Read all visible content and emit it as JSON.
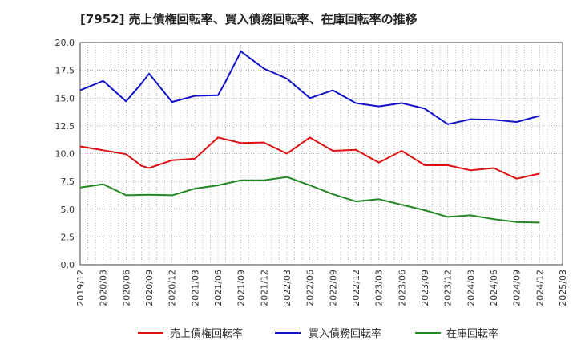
{
  "chart_data": {
    "type": "line",
    "title": "[7952]  売上債権回転率、買入債務回転率、在庫回転率の推移",
    "xlabel": "",
    "ylabel": "",
    "ylim": [
      0,
      20
    ],
    "y_ticks": [
      "0.0",
      "2.5",
      "5.0",
      "7.5",
      "10.0",
      "12.5",
      "15.0",
      "17.5",
      "20.0"
    ],
    "x_ticks": [
      "2019/12",
      "2020/03",
      "2020/06",
      "2020/09",
      "2020/12",
      "2021/03",
      "2021/06",
      "2021/09",
      "2021/12",
      "2022/03",
      "2022/06",
      "2022/09",
      "2022/12",
      "2023/03",
      "2023/06",
      "2023/09",
      "2023/12",
      "2024/03",
      "2024/06",
      "2024/09",
      "2024/12",
      "2025/03"
    ],
    "grid": true,
    "legend_position": "bottom",
    "series": [
      {
        "name": "売上債権回転率",
        "color": "#dd1111",
        "points": [
          {
            "x": "2019/12",
            "y": 10.65
          },
          {
            "x": "2020/03",
            "y": 10.3
          },
          {
            "x": "2020/06",
            "y": 9.95
          },
          {
            "x": "2020/08",
            "y": 8.9
          },
          {
            "x": "2020/09",
            "y": 8.7
          },
          {
            "x": "2020/12",
            "y": 9.4
          },
          {
            "x": "2021/03",
            "y": 9.55
          },
          {
            "x": "2021/06",
            "y": 11.45
          },
          {
            "x": "2021/09",
            "y": 10.95
          },
          {
            "x": "2021/12",
            "y": 11.0
          },
          {
            "x": "2022/03",
            "y": 10.0
          },
          {
            "x": "2022/06",
            "y": 11.45
          },
          {
            "x": "2022/09",
            "y": 10.25
          },
          {
            "x": "2022/12",
            "y": 10.35
          },
          {
            "x": "2023/03",
            "y": 9.2
          },
          {
            "x": "2023/06",
            "y": 10.25
          },
          {
            "x": "2023/09",
            "y": 8.95
          },
          {
            "x": "2023/12",
            "y": 8.95
          },
          {
            "x": "2024/03",
            "y": 8.5
          },
          {
            "x": "2024/06",
            "y": 8.7
          },
          {
            "x": "2024/09",
            "y": 7.75
          },
          {
            "x": "2024/12",
            "y": 8.2
          }
        ]
      },
      {
        "name": "買入債務回転率",
        "color": "#1111cc",
        "points": [
          {
            "x": "2019/12",
            "y": 15.7
          },
          {
            "x": "2020/03",
            "y": 16.55
          },
          {
            "x": "2020/06",
            "y": 14.7
          },
          {
            "x": "2020/08",
            "y": 16.3
          },
          {
            "x": "2020/09",
            "y": 17.2
          },
          {
            "x": "2020/12",
            "y": 14.65
          },
          {
            "x": "2021/03",
            "y": 15.2
          },
          {
            "x": "2021/06",
            "y": 15.25
          },
          {
            "x": "2021/07",
            "y": 16.5
          },
          {
            "x": "2021/09",
            "y": 19.2
          },
          {
            "x": "2021/12",
            "y": 17.65
          },
          {
            "x": "2022/03",
            "y": 16.75
          },
          {
            "x": "2022/06",
            "y": 15.0
          },
          {
            "x": "2022/09",
            "y": 15.7
          },
          {
            "x": "2022/12",
            "y": 14.55
          },
          {
            "x": "2023/03",
            "y": 14.25
          },
          {
            "x": "2023/06",
            "y": 14.55
          },
          {
            "x": "2023/09",
            "y": 14.05
          },
          {
            "x": "2023/12",
            "y": 12.65
          },
          {
            "x": "2024/03",
            "y": 13.1
          },
          {
            "x": "2024/06",
            "y": 13.05
          },
          {
            "x": "2024/09",
            "y": 12.85
          },
          {
            "x": "2024/12",
            "y": 13.4
          }
        ]
      },
      {
        "name": "在庫回転率",
        "color": "#228822",
        "points": [
          {
            "x": "2019/12",
            "y": 6.95
          },
          {
            "x": "2020/03",
            "y": 7.25
          },
          {
            "x": "2020/06",
            "y": 6.25
          },
          {
            "x": "2020/09",
            "y": 6.3
          },
          {
            "x": "2020/12",
            "y": 6.25
          },
          {
            "x": "2021/03",
            "y": 6.85
          },
          {
            "x": "2021/06",
            "y": 7.15
          },
          {
            "x": "2021/09",
            "y": 7.6
          },
          {
            "x": "2021/12",
            "y": 7.6
          },
          {
            "x": "2022/03",
            "y": 7.9
          },
          {
            "x": "2022/06",
            "y": 7.15
          },
          {
            "x": "2022/09",
            "y": 6.35
          },
          {
            "x": "2022/12",
            "y": 5.7
          },
          {
            "x": "2023/03",
            "y": 5.9
          },
          {
            "x": "2023/06",
            "y": 5.4
          },
          {
            "x": "2023/09",
            "y": 4.9
          },
          {
            "x": "2023/12",
            "y": 4.3
          },
          {
            "x": "2024/03",
            "y": 4.45
          },
          {
            "x": "2024/06",
            "y": 4.1
          },
          {
            "x": "2024/09",
            "y": 3.85
          },
          {
            "x": "2024/12",
            "y": 3.8
          }
        ]
      }
    ]
  }
}
